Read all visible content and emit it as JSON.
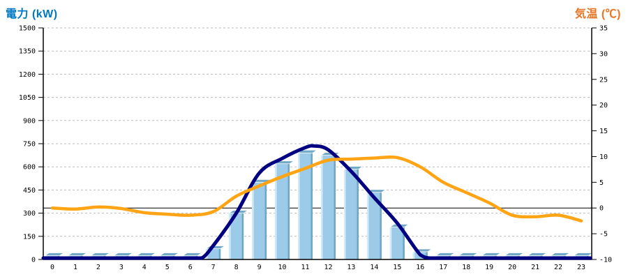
{
  "chart_data": {
    "type": "combo-bar-line",
    "x_axis": {
      "labels": [
        "0",
        "1",
        "2",
        "3",
        "4",
        "5",
        "6",
        "7",
        "8",
        "9",
        "10",
        "11",
        "12",
        "13",
        "14",
        "15",
        "16",
        "17",
        "18",
        "19",
        "20",
        "21",
        "22",
        "23"
      ]
    },
    "left_axis": {
      "title": "電力 (kW)",
      "unit": "kW",
      "min": 0,
      "max": 1500,
      "step": 150,
      "tick_labels": [
        "0",
        "150",
        "300",
        "450",
        "600",
        "750",
        "900",
        "1050",
        "1200",
        "1350",
        "1500"
      ],
      "title_color": "#0077C2"
    },
    "right_axis": {
      "title": "気温 (℃)",
      "unit": "℃",
      "min": -10,
      "max": 35,
      "step": 5,
      "tick_labels": [
        "-10",
        "-5",
        "0",
        "5",
        "10",
        "15",
        "20",
        "25",
        "30",
        "35"
      ],
      "title_color": "#E97424"
    },
    "series": [
      {
        "name": "power_bars",
        "type": "bar",
        "axis": "left",
        "color": "#9BCBE9",
        "values": [
          25,
          25,
          25,
          25,
          25,
          25,
          25,
          70,
          300,
          500,
          620,
          690,
          675,
          585,
          435,
          210,
          50,
          25,
          25,
          25,
          25,
          25,
          25,
          25
        ]
      },
      {
        "name": "power_curve",
        "type": "line",
        "axis": "left",
        "color": "#000080",
        "points": [
          [
            0,
            0
          ],
          [
            1,
            0
          ],
          [
            2,
            0
          ],
          [
            3,
            0
          ],
          [
            4,
            0
          ],
          [
            5,
            0
          ],
          [
            6,
            0
          ],
          [
            6.5,
            0
          ],
          [
            7,
            90
          ],
          [
            8,
            300
          ],
          [
            9,
            560
          ],
          [
            10,
            655
          ],
          [
            11,
            725
          ],
          [
            11.4,
            735
          ],
          [
            12,
            710
          ],
          [
            13,
            570
          ],
          [
            14,
            400
          ],
          [
            15,
            235
          ],
          [
            16,
            30
          ],
          [
            16.4,
            0
          ],
          [
            17,
            0
          ],
          [
            18,
            0
          ],
          [
            19,
            0
          ],
          [
            20,
            0
          ],
          [
            21,
            0
          ],
          [
            22,
            0
          ],
          [
            23,
            0
          ]
        ]
      },
      {
        "name": "temperature",
        "type": "line",
        "axis": "right",
        "color": "#FFA414",
        "values": [
          0,
          -0.2,
          0.2,
          -0.1,
          -0.9,
          -1.2,
          -1.4,
          -0.7,
          2.3,
          4.3,
          6.1,
          7.7,
          9.3,
          9.5,
          9.7,
          9.8,
          8.0,
          5.0,
          3.0,
          1.0,
          -1.4,
          -1.7,
          -1.4,
          -2.5
        ]
      }
    ],
    "grid": {
      "dashed_line_color": "#BBBBBB",
      "zero_temp_line_color": "#000000",
      "axis_color": "#000000"
    },
    "bar_style": {
      "face": "#9BCBE9",
      "bevel": "#72A9C6",
      "highlight": "#D3EAF7",
      "shade": "#6FA6C2",
      "bevel_outline": "#FFFFFF"
    }
  }
}
